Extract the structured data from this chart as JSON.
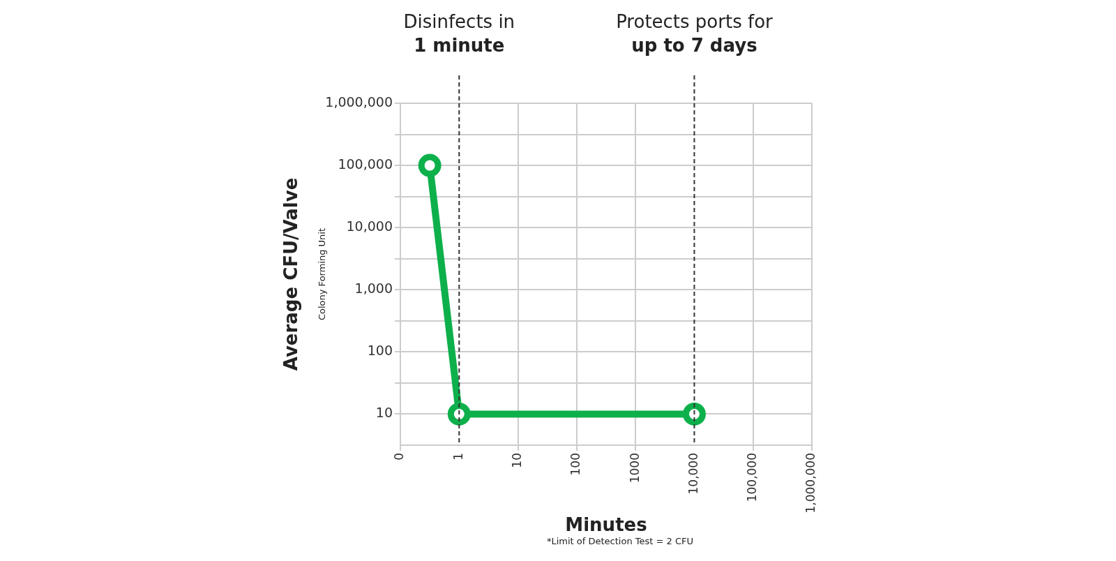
{
  "chart_data": {
    "type": "line",
    "xlabel": "Minutes",
    "ylabel": "Average CFU/Valve",
    "annotations": [
      "Colony Forming Unit",
      "*Limit of Detection Test = 2 CFU"
    ],
    "x": [
      0.316,
      1,
      10000
    ],
    "series": [
      {
        "color": "#0db04b",
        "values": [
          100000,
          10,
          10
        ]
      }
    ],
    "log": "xy",
    "marker": "circle",
    "line_style": "solid",
    "grid": true,
    "legend": false,
    "xlim": [
      0.1,
      1000000
    ],
    "xticks": [
      {
        "value": 0.1,
        "label": "0"
      },
      1,
      10,
      100,
      {
        "value": 1000,
        "label": "1000"
      },
      {
        "value": 10000,
        "label": "10,000"
      },
      {
        "value": 100000,
        "label": "100,000"
      },
      {
        "value": 1000000,
        "label": "1,000,000"
      }
    ],
    "ylim": [
      3.16,
      1000000
    ],
    "yticks": [
      {
        "value": 10,
        "label": "10"
      },
      {
        "value": 31.6,
        "label": null
      },
      {
        "value": 100,
        "label": "100"
      },
      {
        "value": 316,
        "label": null
      },
      {
        "value": 1000,
        "label": "1,000"
      },
      {
        "value": 3160,
        "label": null
      },
      {
        "value": 10000,
        "label": "10,000"
      },
      {
        "value": 31600,
        "label": null
      },
      {
        "value": 100000,
        "label": "100,000"
      },
      {
        "value": 316000,
        "label": null
      },
      {
        "value": 1000000,
        "label": "1,000,000"
      }
    ],
    "ref_lines": [
      {
        "axis": "x",
        "value": 1,
        "label": "Disinfects in\n1 minute",
        "line_style": "dashed",
        "color": "#333333"
      },
      {
        "axis": "x",
        "value": 10000,
        "label": "Protects ports for\nup to 7 days",
        "line_style": "dashed",
        "color": "#333333"
      }
    ]
  }
}
